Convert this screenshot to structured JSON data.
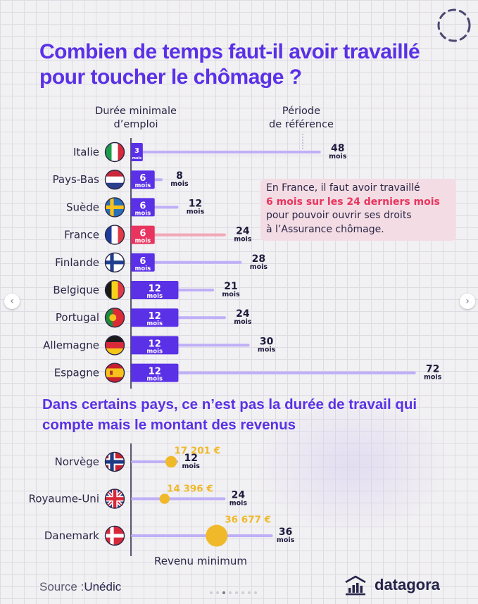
{
  "title": "Combien de temps faut-il avoir travaillé pour toucher le chômage ?",
  "col_left": [
    "Durée minimale",
    "d’emploi"
  ],
  "col_right": [
    "Période",
    "de référence"
  ],
  "unit": "mois",
  "note": {
    "line1": "En France, il faut avoir travaillé",
    "line2": "6 mois sur les 24 derniers mois",
    "line3": "pour pouvoir ouvrir ses droits",
    "line4": "à l’Assurance chômage."
  },
  "subtitle": "Dans certains pays, ce n’est pas la durée de travail qui compte mais le montant des revenus",
  "revenue_label": "Revenu minimum",
  "source_label": "Source :",
  "source_value": "Unédic",
  "brand": "datagora",
  "colors": {
    "purple": "#5a31e6",
    "light_purple": "#bfaff7",
    "pink": "#e8345e",
    "light_pink": "#f3a6b8",
    "gold": "#f0b92a",
    "dark": "#1d1b3c"
  },
  "chart_data": [
    {
      "type": "bar",
      "categories": [
        "Italie",
        "Pays-Bas",
        "Suède",
        "France",
        "Finlande",
        "Belgique",
        "Portugal",
        "Allemagne",
        "Espagne"
      ],
      "flags": [
        "flag-italy",
        "flag-netherlands",
        "flag-sweden",
        "flag-france",
        "flag-finland",
        "flag-belgium",
        "flag-portugal",
        "flag-germany",
        "flag-spain"
      ],
      "series": [
        {
          "name": "Durée minimale d’emploi",
          "values": [
            3,
            6,
            6,
            6,
            6,
            12,
            12,
            12,
            12
          ]
        },
        {
          "name": "Période de référence",
          "values": [
            48,
            8,
            12,
            24,
            28,
            21,
            24,
            30,
            72
          ]
        }
      ],
      "highlight": "France",
      "xlim": [
        0,
        72
      ]
    },
    {
      "type": "scatter",
      "categories": [
        "Norvège",
        "Royaume-Uni",
        "Danemark"
      ],
      "flags": [
        "flag-norway",
        "flag-uk",
        "flag-denmark"
      ],
      "revenue_labels": [
        "17 201 €",
        "14 396 €",
        "36 677 €"
      ],
      "revenue": [
        17201,
        14396,
        36677
      ],
      "period_months": [
        12,
        24,
        36
      ]
    }
  ]
}
